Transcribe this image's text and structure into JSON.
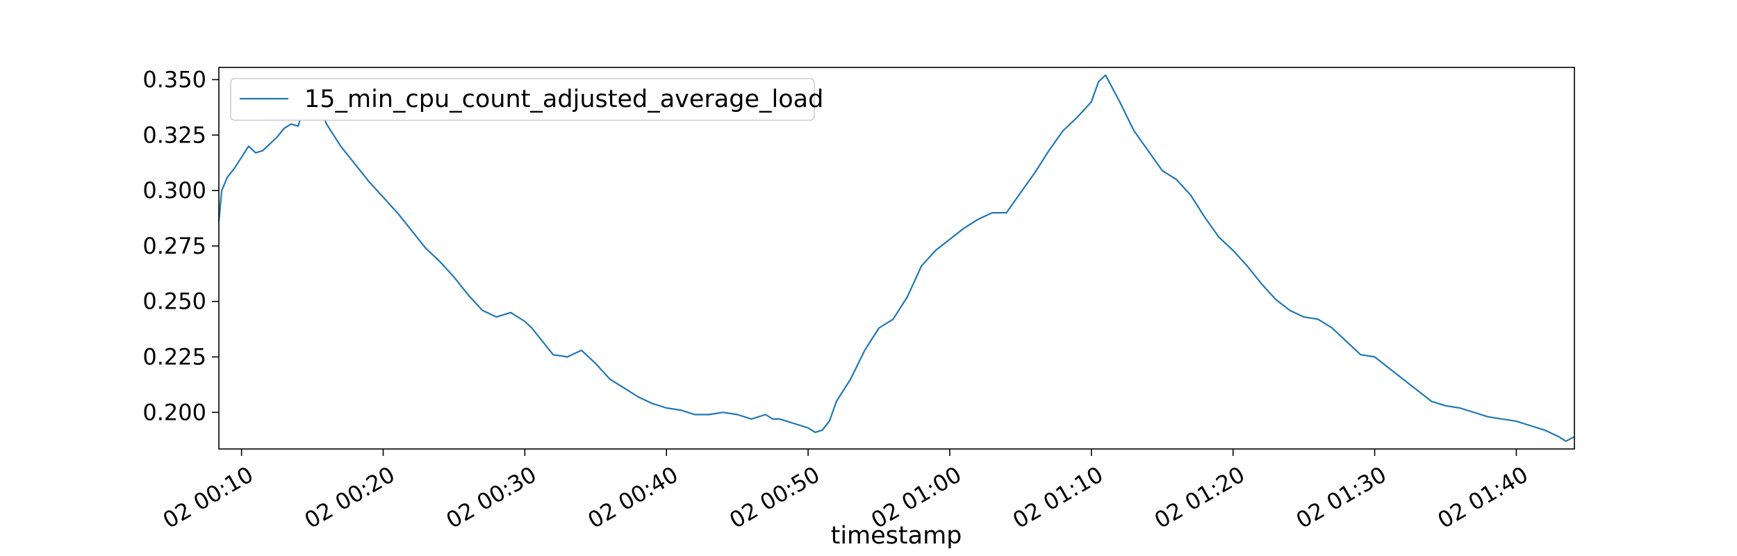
{
  "chart_data": {
    "type": "line",
    "title": "",
    "xlabel": "timestamp",
    "ylabel": "",
    "legend_position": "top-left",
    "grid": false,
    "line_color": "#1f77b4",
    "xlim_minutes": [
      8.4,
      104.1
    ],
    "ylim": [
      0.1835,
      0.3555
    ],
    "x_ticks": [
      {
        "minute": 10,
        "label": "02 00:10"
      },
      {
        "minute": 20,
        "label": "02 00:20"
      },
      {
        "minute": 30,
        "label": "02 00:30"
      },
      {
        "minute": 40,
        "label": "02 00:40"
      },
      {
        "minute": 50,
        "label": "02 00:50"
      },
      {
        "minute": 60,
        "label": "02 01:00"
      },
      {
        "minute": 70,
        "label": "02 01:10"
      },
      {
        "minute": 80,
        "label": "02 01:20"
      },
      {
        "minute": 90,
        "label": "02 01:30"
      },
      {
        "minute": 100,
        "label": "02 01:40"
      }
    ],
    "y_ticks": [
      {
        "value": 0.2,
        "label": "0.200"
      },
      {
        "value": 0.225,
        "label": "0.225"
      },
      {
        "value": 0.25,
        "label": "0.250"
      },
      {
        "value": 0.275,
        "label": "0.275"
      },
      {
        "value": 0.3,
        "label": "0.300"
      },
      {
        "value": 0.325,
        "label": "0.325"
      },
      {
        "value": 0.35,
        "label": "0.350"
      }
    ],
    "series": [
      {
        "name": "15_min_cpu_count_adjusted_average_load",
        "x_minutes": [
          8.4,
          8.6,
          9.0,
          9.5,
          10.0,
          10.5,
          11.0,
          11.5,
          12.0,
          12.5,
          13.0,
          13.5,
          14.0,
          14.5,
          15.0,
          15.5,
          16.0,
          17.0,
          18.0,
          19.0,
          20.0,
          21.0,
          22.0,
          23.0,
          24.0,
          25.0,
          26.0,
          27.0,
          28.0,
          29.0,
          30.0,
          30.5,
          31.0,
          32.0,
          33.0,
          34.0,
          35.0,
          36.0,
          37.0,
          38.0,
          39.0,
          40.0,
          41.0,
          42.0,
          43.0,
          44.0,
          45.0,
          46.0,
          47.0,
          47.5,
          48.0,
          49.0,
          50.0,
          50.5,
          51.0,
          51.5,
          52.0,
          53.0,
          54.0,
          55.0,
          56.0,
          57.0,
          58.0,
          59.0,
          60.0,
          61.0,
          62.0,
          63.0,
          64.0,
          65.0,
          66.0,
          67.0,
          68.0,
          69.0,
          70.0,
          70.5,
          71.0,
          72.0,
          73.0,
          74.0,
          75.0,
          76.0,
          77.0,
          78.0,
          79.0,
          80.0,
          81.0,
          82.0,
          83.0,
          84.0,
          85.0,
          86.0,
          87.0,
          88.0,
          89.0,
          90.0,
          91.0,
          92.0,
          93.0,
          94.0,
          95.0,
          96.0,
          97.0,
          98.0,
          99.0,
          100.0,
          101.0,
          102.0,
          103.0,
          103.5,
          104.1
        ],
        "y": [
          0.286,
          0.3,
          0.306,
          0.31,
          0.315,
          0.32,
          0.317,
          0.318,
          0.321,
          0.324,
          0.328,
          0.33,
          0.329,
          0.34,
          0.346,
          0.338,
          0.33,
          0.32,
          0.312,
          0.304,
          0.297,
          0.29,
          0.282,
          0.274,
          0.268,
          0.261,
          0.253,
          0.246,
          0.243,
          0.245,
          0.241,
          0.238,
          0.234,
          0.226,
          0.225,
          0.228,
          0.222,
          0.215,
          0.211,
          0.207,
          0.204,
          0.202,
          0.201,
          0.199,
          0.199,
          0.2,
          0.199,
          0.197,
          0.199,
          0.197,
          0.197,
          0.195,
          0.193,
          0.191,
          0.192,
          0.196,
          0.205,
          0.215,
          0.228,
          0.238,
          0.242,
          0.252,
          0.266,
          0.273,
          0.278,
          0.283,
          0.287,
          0.29,
          0.29,
          0.299,
          0.308,
          0.318,
          0.327,
          0.333,
          0.34,
          0.349,
          0.352,
          0.34,
          0.327,
          0.318,
          0.309,
          0.305,
          0.298,
          0.288,
          0.279,
          0.273,
          0.266,
          0.258,
          0.251,
          0.246,
          0.243,
          0.242,
          0.238,
          0.232,
          0.226,
          0.225,
          0.22,
          0.215,
          0.21,
          0.205,
          0.203,
          0.202,
          0.2,
          0.198,
          0.197,
          0.196,
          0.194,
          0.192,
          0.189,
          0.187,
          0.189
        ]
      }
    ]
  }
}
